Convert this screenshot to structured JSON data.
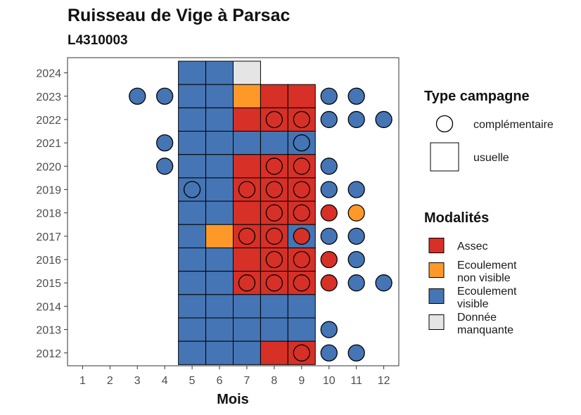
{
  "title": "Ruisseau de Vige à Parsac",
  "subtitle": "L4310003",
  "colors": {
    "Assec": "#D73027",
    "Ecoulement non visible": "#FE9929",
    "Ecoulement visible": "#4575B4",
    "Donnée manquante": "#E5E5E5"
  },
  "legend": {
    "type_title": "Type campagne",
    "type_items": [
      {
        "shape": "circle",
        "label": "complémentaire"
      },
      {
        "shape": "square",
        "label": "usuelle"
      }
    ],
    "mod_title": "Modalités",
    "mod_items": [
      {
        "key": "Assec",
        "lines": [
          "Assec"
        ]
      },
      {
        "key": "Ecoulement non visible",
        "lines": [
          "Ecoulement",
          "non visible"
        ]
      },
      {
        "key": "Ecoulement visible",
        "lines": [
          "Ecoulement",
          "visible"
        ]
      },
      {
        "key": "Donnée manquante",
        "lines": [
          "Donnée",
          "manquante"
        ]
      }
    ]
  },
  "chart_data": {
    "type": "heatmap",
    "xlabel": "Mois",
    "ylabel": "",
    "x_ticks": [
      1,
      2,
      3,
      4,
      5,
      6,
      7,
      8,
      9,
      10,
      11,
      12
    ],
    "y_ticks": [
      2012,
      2013,
      2014,
      2015,
      2016,
      2017,
      2018,
      2019,
      2020,
      2021,
      2022,
      2023,
      2024
    ],
    "xlim": [
      0.45,
      12.55
    ],
    "ylim": [
      2011.45,
      2024.65
    ],
    "usuelle": [
      {
        "year": 2024,
        "month": 5,
        "m": "Ecoulement visible"
      },
      {
        "year": 2024,
        "month": 6,
        "m": "Ecoulement visible"
      },
      {
        "year": 2024,
        "month": 7,
        "m": "Donnée manquante"
      },
      {
        "year": 2023,
        "month": 5,
        "m": "Ecoulement visible"
      },
      {
        "year": 2023,
        "month": 6,
        "m": "Ecoulement visible"
      },
      {
        "year": 2023,
        "month": 7,
        "m": "Ecoulement non visible"
      },
      {
        "year": 2023,
        "month": 8,
        "m": "Assec"
      },
      {
        "year": 2023,
        "month": 9,
        "m": "Assec"
      },
      {
        "year": 2022,
        "month": 5,
        "m": "Ecoulement visible"
      },
      {
        "year": 2022,
        "month": 6,
        "m": "Ecoulement visible"
      },
      {
        "year": 2022,
        "month": 7,
        "m": "Assec"
      },
      {
        "year": 2022,
        "month": 8,
        "m": "Assec"
      },
      {
        "year": 2022,
        "month": 9,
        "m": "Assec"
      },
      {
        "year": 2021,
        "month": 5,
        "m": "Ecoulement visible"
      },
      {
        "year": 2021,
        "month": 6,
        "m": "Ecoulement visible"
      },
      {
        "year": 2021,
        "month": 7,
        "m": "Ecoulement visible"
      },
      {
        "year": 2021,
        "month": 8,
        "m": "Ecoulement visible"
      },
      {
        "year": 2021,
        "month": 9,
        "m": "Ecoulement visible"
      },
      {
        "year": 2020,
        "month": 5,
        "m": "Ecoulement visible"
      },
      {
        "year": 2020,
        "month": 6,
        "m": "Ecoulement visible"
      },
      {
        "year": 2020,
        "month": 7,
        "m": "Assec"
      },
      {
        "year": 2020,
        "month": 8,
        "m": "Assec"
      },
      {
        "year": 2020,
        "month": 9,
        "m": "Assec"
      },
      {
        "year": 2019,
        "month": 5,
        "m": "Ecoulement visible"
      },
      {
        "year": 2019,
        "month": 6,
        "m": "Ecoulement visible"
      },
      {
        "year": 2019,
        "month": 7,
        "m": "Assec"
      },
      {
        "year": 2019,
        "month": 8,
        "m": "Assec"
      },
      {
        "year": 2019,
        "month": 9,
        "m": "Assec"
      },
      {
        "year": 2018,
        "month": 5,
        "m": "Ecoulement visible"
      },
      {
        "year": 2018,
        "month": 6,
        "m": "Ecoulement visible"
      },
      {
        "year": 2018,
        "month": 7,
        "m": "Assec"
      },
      {
        "year": 2018,
        "month": 8,
        "m": "Assec"
      },
      {
        "year": 2018,
        "month": 9,
        "m": "Assec"
      },
      {
        "year": 2017,
        "month": 5,
        "m": "Ecoulement visible"
      },
      {
        "year": 2017,
        "month": 6,
        "m": "Ecoulement non visible"
      },
      {
        "year": 2017,
        "month": 7,
        "m": "Assec"
      },
      {
        "year": 2017,
        "month": 8,
        "m": "Assec"
      },
      {
        "year": 2017,
        "month": 9,
        "m": "Ecoulement visible"
      },
      {
        "year": 2016,
        "month": 5,
        "m": "Ecoulement visible"
      },
      {
        "year": 2016,
        "month": 6,
        "m": "Ecoulement visible"
      },
      {
        "year": 2016,
        "month": 7,
        "m": "Assec"
      },
      {
        "year": 2016,
        "month": 8,
        "m": "Assec"
      },
      {
        "year": 2016,
        "month": 9,
        "m": "Assec"
      },
      {
        "year": 2015,
        "month": 5,
        "m": "Ecoulement visible"
      },
      {
        "year": 2015,
        "month": 6,
        "m": "Ecoulement visible"
      },
      {
        "year": 2015,
        "month": 7,
        "m": "Assec"
      },
      {
        "year": 2015,
        "month": 8,
        "m": "Assec"
      },
      {
        "year": 2015,
        "month": 9,
        "m": "Assec"
      },
      {
        "year": 2014,
        "month": 5,
        "m": "Ecoulement visible"
      },
      {
        "year": 2014,
        "month": 6,
        "m": "Ecoulement visible"
      },
      {
        "year": 2014,
        "month": 7,
        "m": "Ecoulement visible"
      },
      {
        "year": 2014,
        "month": 8,
        "m": "Ecoulement visible"
      },
      {
        "year": 2014,
        "month": 9,
        "m": "Ecoulement visible"
      },
      {
        "year": 2013,
        "month": 5,
        "m": "Ecoulement visible"
      },
      {
        "year": 2013,
        "month": 6,
        "m": "Ecoulement visible"
      },
      {
        "year": 2013,
        "month": 7,
        "m": "Ecoulement visible"
      },
      {
        "year": 2013,
        "month": 8,
        "m": "Ecoulement visible"
      },
      {
        "year": 2013,
        "month": 9,
        "m": "Ecoulement visible"
      },
      {
        "year": 2012,
        "month": 5,
        "m": "Ecoulement visible"
      },
      {
        "year": 2012,
        "month": 6,
        "m": "Ecoulement visible"
      },
      {
        "year": 2012,
        "month": 7,
        "m": "Ecoulement visible"
      },
      {
        "year": 2012,
        "month": 8,
        "m": "Assec"
      },
      {
        "year": 2012,
        "month": 9,
        "m": "Assec"
      }
    ],
    "complementaire": [
      {
        "year": 2023,
        "month": 3,
        "m": "Ecoulement visible"
      },
      {
        "year": 2023,
        "month": 4,
        "m": "Ecoulement visible"
      },
      {
        "year": 2023,
        "month": 10,
        "m": "Ecoulement visible"
      },
      {
        "year": 2023,
        "month": 11,
        "m": "Ecoulement visible"
      },
      {
        "year": 2022,
        "month": 8,
        "m": "Assec"
      },
      {
        "year": 2022,
        "month": 9,
        "m": "Assec"
      },
      {
        "year": 2022,
        "month": 10,
        "m": "Ecoulement visible"
      },
      {
        "year": 2022,
        "month": 11,
        "m": "Ecoulement visible"
      },
      {
        "year": 2022,
        "month": 12,
        "m": "Ecoulement visible"
      },
      {
        "year": 2021,
        "month": 4,
        "m": "Ecoulement visible"
      },
      {
        "year": 2021,
        "month": 9,
        "m": "Ecoulement visible"
      },
      {
        "year": 2020,
        "month": 4,
        "m": "Ecoulement visible"
      },
      {
        "year": 2020,
        "month": 8,
        "m": "Assec"
      },
      {
        "year": 2020,
        "month": 9,
        "m": "Assec"
      },
      {
        "year": 2020,
        "month": 10,
        "m": "Ecoulement visible"
      },
      {
        "year": 2019,
        "month": 5,
        "m": "Ecoulement visible"
      },
      {
        "year": 2019,
        "month": 7,
        "m": "Assec"
      },
      {
        "year": 2019,
        "month": 8,
        "m": "Assec"
      },
      {
        "year": 2019,
        "month": 9,
        "m": "Assec"
      },
      {
        "year": 2019,
        "month": 10,
        "m": "Ecoulement visible"
      },
      {
        "year": 2019,
        "month": 11,
        "m": "Ecoulement visible"
      },
      {
        "year": 2018,
        "month": 8,
        "m": "Assec"
      },
      {
        "year": 2018,
        "month": 9,
        "m": "Assec"
      },
      {
        "year": 2018,
        "month": 10,
        "m": "Assec"
      },
      {
        "year": 2018,
        "month": 11,
        "m": "Ecoulement non visible"
      },
      {
        "year": 2017,
        "month": 7,
        "m": "Assec"
      },
      {
        "year": 2017,
        "month": 8,
        "m": "Assec"
      },
      {
        "year": 2017,
        "month": 9,
        "m": "Assec"
      },
      {
        "year": 2017,
        "month": 10,
        "m": "Ecoulement visible"
      },
      {
        "year": 2017,
        "month": 11,
        "m": "Ecoulement visible"
      },
      {
        "year": 2016,
        "month": 8,
        "m": "Assec"
      },
      {
        "year": 2016,
        "month": 9,
        "m": "Assec"
      },
      {
        "year": 2016,
        "month": 10,
        "m": "Assec"
      },
      {
        "year": 2016,
        "month": 11,
        "m": "Ecoulement visible"
      },
      {
        "year": 2015,
        "month": 7,
        "m": "Assec"
      },
      {
        "year": 2015,
        "month": 8,
        "m": "Assec"
      },
      {
        "year": 2015,
        "month": 9,
        "m": "Assec"
      },
      {
        "year": 2015,
        "month": 10,
        "m": "Assec"
      },
      {
        "year": 2015,
        "month": 11,
        "m": "Ecoulement visible"
      },
      {
        "year": 2015,
        "month": 12,
        "m": "Ecoulement visible"
      },
      {
        "year": 2013,
        "month": 10,
        "m": "Ecoulement visible"
      },
      {
        "year": 2012,
        "month": 9,
        "m": "Assec"
      },
      {
        "year": 2012,
        "month": 10,
        "m": "Ecoulement visible"
      },
      {
        "year": 2012,
        "month": 11,
        "m": "Ecoulement visible"
      }
    ]
  }
}
